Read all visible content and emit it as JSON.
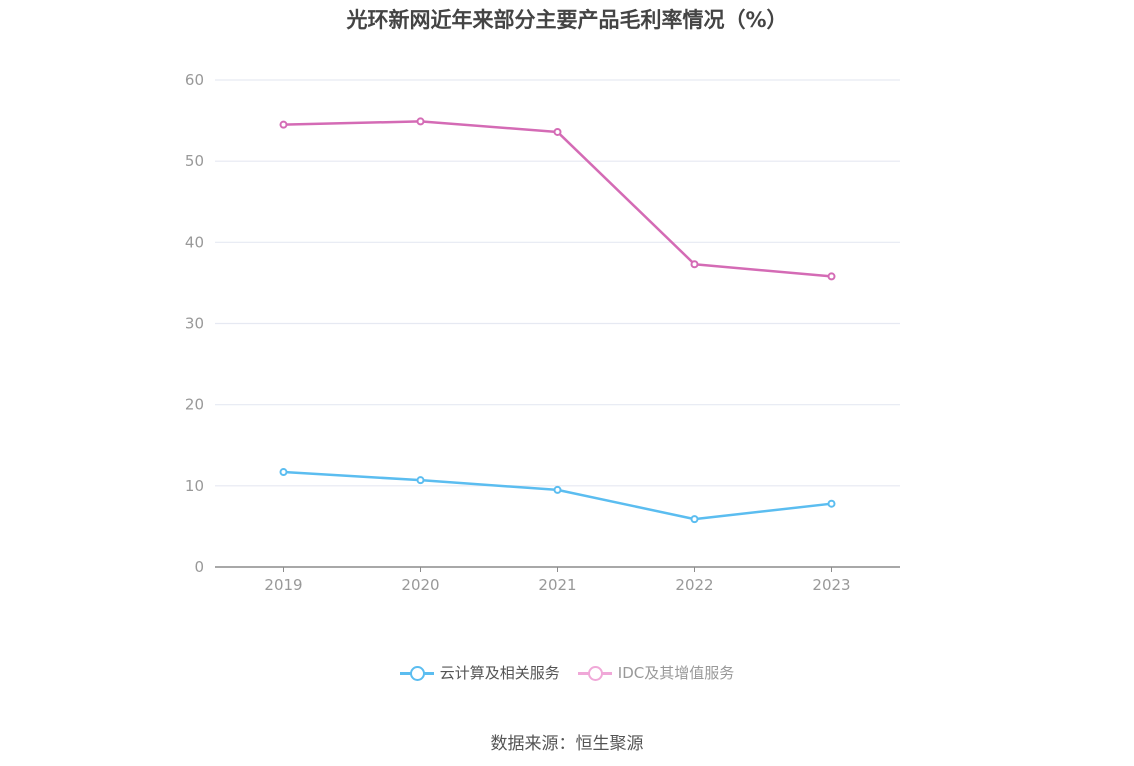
{
  "title": "光环新网近年来部分主要产品毛利率情况（%）",
  "source": "数据来源：恒生聚源",
  "colors": {
    "series1": "#5bbdf0",
    "series2": "#d46bb5",
    "series2_legend": "#f0a8d8",
    "grid": "#e6e9f2",
    "axis": "#8c8c8c",
    "tick_text": "#999999"
  },
  "chart_data": {
    "type": "line",
    "categories": [
      "2019",
      "2020",
      "2021",
      "2022",
      "2023"
    ],
    "ylim": [
      0,
      60
    ],
    "yticks": [
      0,
      10,
      20,
      30,
      40,
      50,
      60
    ],
    "grid": true,
    "legend_position": "bottom",
    "series": [
      {
        "name": "云计算及相关服务",
        "values": [
          11.7,
          10.7,
          9.5,
          5.9,
          7.8
        ]
      },
      {
        "name": "IDC及其增值服务",
        "values": [
          54.5,
          54.9,
          53.6,
          37.3,
          35.8
        ]
      }
    ]
  }
}
